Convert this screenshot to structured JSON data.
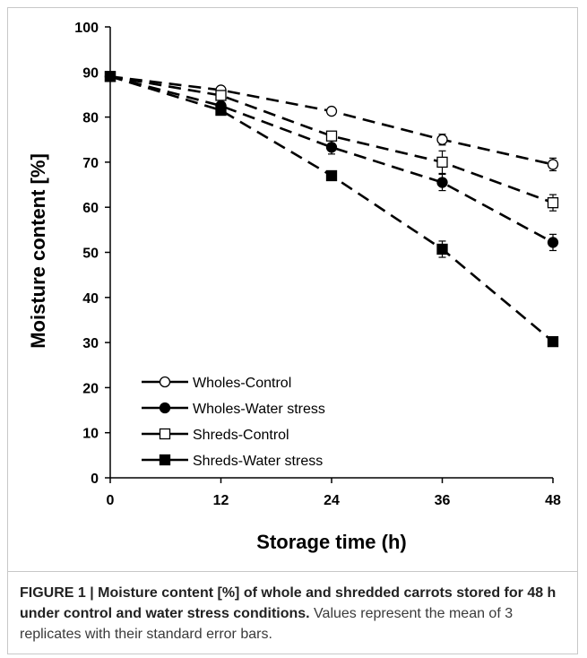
{
  "chart_data": {
    "type": "line",
    "ylabel": "Moisture content [%]",
    "xlabel": "Storage time (h)",
    "x": [
      0,
      12,
      24,
      36,
      48
    ],
    "xticks": [
      "0",
      "12",
      "24",
      "36",
      "48"
    ],
    "yticks": [
      "0",
      "10",
      "20",
      "30",
      "40",
      "50",
      "60",
      "70",
      "80",
      "90",
      "100"
    ],
    "xlim": [
      0,
      48
    ],
    "ylim": [
      0,
      100
    ],
    "grid": false,
    "legend_position": "bottom-left",
    "series": [
      {
        "name": "Wholes-Control",
        "marker": "circle-open",
        "values": [
          89,
          86,
          81.3,
          75,
          69.5
        ],
        "err": [
          0.5,
          0.5,
          0.8,
          1.2,
          1.4
        ]
      },
      {
        "name": "Wholes-Water stress",
        "marker": "circle-filled",
        "values": [
          89,
          82.5,
          73.3,
          65.5,
          52.2
        ],
        "err": [
          0.5,
          0.8,
          1.5,
          1.8,
          1.8
        ]
      },
      {
        "name": "Shreds-Control",
        "marker": "square-open",
        "values": [
          89,
          84.8,
          75.8,
          70,
          61
        ],
        "err": [
          0.5,
          0.8,
          1.0,
          2.5,
          1.8
        ]
      },
      {
        "name": "Shreds-Water stress",
        "marker": "square-filled",
        "values": [
          89,
          81.5,
          67,
          50.7,
          30.2
        ],
        "err": [
          0.5,
          0.8,
          0.8,
          1.8,
          0.8
        ]
      }
    ]
  },
  "caption": {
    "bold": "FIGURE 1 | Moisture content [%] of whole and shredded carrots stored for 48 h under control and water stress conditions.",
    "text": " Values represent the mean of 3 replicates with their standard error bars."
  }
}
